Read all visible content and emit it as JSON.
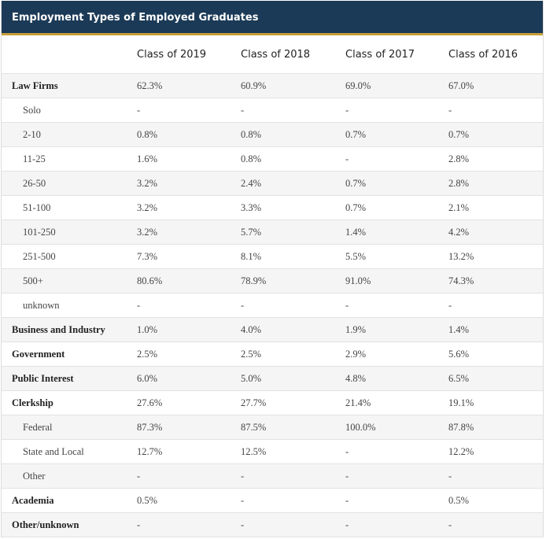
{
  "title": "Employment Types of Employed Graduates",
  "columns": [
    "Class of 2019",
    "Class of 2018",
    "Class of 2017",
    "Class of 2016"
  ],
  "rows": [
    {
      "label": "Law Firms",
      "main": true,
      "values": [
        "62.3%",
        "60.9%",
        "69.0%",
        "67.0%"
      ]
    },
    {
      "label": "Solo",
      "main": false,
      "values": [
        "-",
        "-",
        "-",
        "-"
      ]
    },
    {
      "label": "2-10",
      "main": false,
      "values": [
        "0.8%",
        "0.8%",
        "0.7%",
        "0.7%"
      ]
    },
    {
      "label": "11-25",
      "main": false,
      "values": [
        "1.6%",
        "0.8%",
        "-",
        "2.8%"
      ]
    },
    {
      "label": "26-50",
      "main": false,
      "values": [
        "3.2%",
        "2.4%",
        "0.7%",
        "2.8%"
      ]
    },
    {
      "label": "51-100",
      "main": false,
      "values": [
        "3.2%",
        "3.3%",
        "0.7%",
        "2.1%"
      ]
    },
    {
      "label": "101-250",
      "main": false,
      "values": [
        "3.2%",
        "5.7%",
        "1.4%",
        "4.2%"
      ]
    },
    {
      "label": "251-500",
      "main": false,
      "values": [
        "7.3%",
        "8.1%",
        "5.5%",
        "13.2%"
      ]
    },
    {
      "label": "500+",
      "main": false,
      "values": [
        "80.6%",
        "78.9%",
        "91.0%",
        "74.3%"
      ]
    },
    {
      "label": "unknown",
      "main": false,
      "values": [
        "-",
        "-",
        "-",
        "-"
      ]
    },
    {
      "label": "Business and Industry",
      "main": true,
      "values": [
        "1.0%",
        "4.0%",
        "1.9%",
        "1.4%"
      ]
    },
    {
      "label": "Government",
      "main": true,
      "values": [
        "2.5%",
        "2.5%",
        "2.9%",
        "5.6%"
      ]
    },
    {
      "label": "Public Interest",
      "main": true,
      "values": [
        "6.0%",
        "5.0%",
        "4.8%",
        "6.5%"
      ]
    },
    {
      "label": "Clerkship",
      "main": true,
      "values": [
        "27.6%",
        "27.7%",
        "21.4%",
        "19.1%"
      ]
    },
    {
      "label": "Federal",
      "main": false,
      "values": [
        "87.3%",
        "87.5%",
        "100.0%",
        "87.8%"
      ]
    },
    {
      "label": "State and Local",
      "main": false,
      "values": [
        "12.7%",
        "12.5%",
        "-",
        "12.2%"
      ]
    },
    {
      "label": "Other",
      "main": false,
      "values": [
        "-",
        "-",
        "-",
        "-"
      ]
    },
    {
      "label": "Academia",
      "main": true,
      "values": [
        "0.5%",
        "-",
        "-",
        "0.5%"
      ]
    },
    {
      "label": "Other/unknown",
      "main": true,
      "values": [
        "-",
        "-",
        "-",
        "-"
      ]
    }
  ]
}
